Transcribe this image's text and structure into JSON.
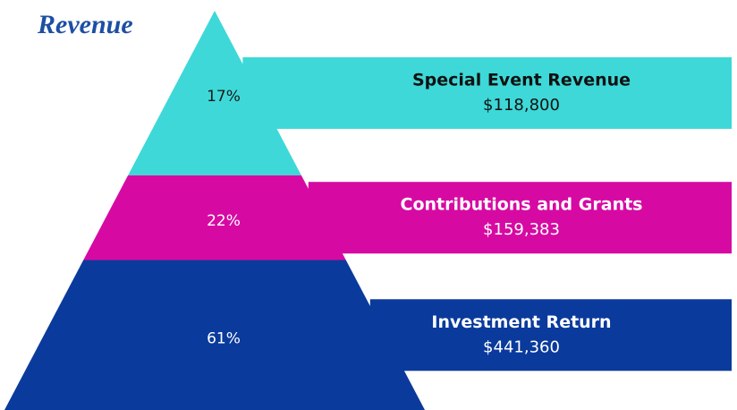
{
  "chart_data": {
    "type": "pyramid",
    "title": "Revenue",
    "categories": [
      "Special Event Revenue",
      "Contributions and Grants",
      "Investment Return"
    ],
    "values": [
      17,
      22,
      61
    ],
    "value_labels": [
      "17%",
      "22%",
      "61%"
    ],
    "amounts": [
      118800,
      159383,
      441360
    ],
    "amount_labels": [
      "$118,800",
      "$159,383",
      "$441,360"
    ],
    "colors": [
      "#3ed8d8",
      "#d60aa3",
      "#0a3a9c"
    ]
  }
}
